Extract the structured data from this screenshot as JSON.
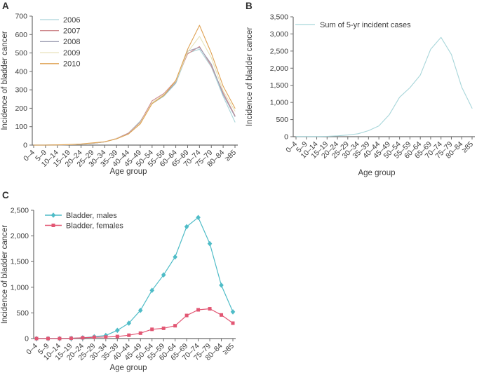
{
  "figure": {
    "background": "#ffffff",
    "text_color": "#3c3c3c",
    "axis_color": "#6b6b6b"
  },
  "chart_data": [
    {
      "type": "line",
      "panel_label": "A",
      "xlabel": "Age group",
      "ylabel": "Incidence of bladder cancer",
      "x_categories": [
        "0–4",
        "5–9",
        "10–14",
        "15–19",
        "20–24",
        "25–29",
        "30–34",
        "35–39",
        "40–44",
        "45–49",
        "50–54",
        "55–59",
        "60–64",
        "65–69",
        "70–74",
        "75–79",
        "80–84",
        "≥85"
      ],
      "ylim": [
        0,
        700
      ],
      "yticks": {
        "values": [
          0,
          100,
          200,
          300,
          400,
          500,
          600,
          700
        ],
        "labels": [
          "0",
          "100",
          "200",
          "300",
          "400",
          "500",
          "600",
          "700"
        ]
      },
      "grid": false,
      "legend_position": "top-left-inside",
      "series": [
        {
          "name": "2006",
          "color": "#aad4d9",
          "marker": "none",
          "values": [
            0,
            0,
            1,
            2,
            5,
            10,
            17,
            35,
            65,
            130,
            225,
            265,
            335,
            500,
            520,
            425,
            265,
            125
          ]
        },
        {
          "name": "2007",
          "color": "#d08c90",
          "marker": "none",
          "values": [
            0,
            0,
            1,
            2,
            5,
            10,
            18,
            36,
            65,
            125,
            240,
            280,
            350,
            495,
            535,
            430,
            285,
            160
          ]
        },
        {
          "name": "2008",
          "color": "#9b9cb1",
          "marker": "none",
          "values": [
            0,
            0,
            1,
            2,
            5,
            10,
            17,
            35,
            62,
            120,
            230,
            270,
            340,
            510,
            530,
            440,
            275,
            155
          ]
        },
        {
          "name": "2009",
          "color": "#e7e2b8",
          "marker": "none",
          "values": [
            0,
            0,
            1,
            2,
            5,
            11,
            18,
            35,
            60,
            120,
            230,
            275,
            345,
            505,
            590,
            475,
            295,
            185
          ]
        },
        {
          "name": "2010",
          "color": "#dfa253",
          "marker": "none",
          "values": [
            0,
            0,
            1,
            3,
            6,
            12,
            18,
            34,
            60,
            115,
            225,
            270,
            350,
            520,
            650,
            500,
            320,
            200
          ]
        }
      ]
    },
    {
      "type": "line",
      "panel_label": "B",
      "xlabel": "Age group",
      "ylabel": "Incidence of bladder cancer",
      "x_categories": [
        "0–4",
        "5–9",
        "10–14",
        "15–19",
        "20–24",
        "25–29",
        "30–34",
        "35–39",
        "40–44",
        "45–49",
        "50–54",
        "55–59",
        "60–64",
        "65–69",
        "70–74",
        "75–79",
        "80–84",
        "≥85"
      ],
      "ylim": [
        0,
        3500
      ],
      "yticks": {
        "values": [
          0,
          500,
          1000,
          1500,
          2000,
          2500,
          3000,
          3500
        ],
        "labels": [
          "0",
          "500",
          "1,000",
          "1,500",
          "2,000",
          "2,500",
          "3,000",
          "3,500"
        ]
      },
      "grid": false,
      "legend_position": "top-left-inside",
      "series": [
        {
          "name": "Sum of 5-yr incident cases",
          "color": "#a8d6da",
          "marker": "none",
          "values": [
            5,
            5,
            5,
            10,
            25,
            50,
            85,
            175,
            315,
            640,
            1150,
            1430,
            1800,
            2550,
            2900,
            2400,
            1450,
            830
          ]
        }
      ]
    },
    {
      "type": "line",
      "panel_label": "C",
      "xlabel": "Age group",
      "ylabel": "Incidence of bladder cancer",
      "x_categories": [
        "0–4",
        "5–9",
        "10–14",
        "15–19",
        "20–24",
        "25–29",
        "30–34",
        "35–39",
        "40–44",
        "45–49",
        "50–54",
        "55–59",
        "60–64",
        "65–69",
        "70–74",
        "75–79",
        "80–84",
        "≥85"
      ],
      "ylim": [
        0,
        2500
      ],
      "yticks": {
        "values": [
          0,
          500,
          1000,
          1500,
          2000,
          2500
        ],
        "labels": [
          "0",
          "500",
          "1,000",
          "1,500",
          "2,000",
          "2,500"
        ]
      },
      "grid": false,
      "legend_position": "top-left-inside",
      "series": [
        {
          "name": "Bladder, males",
          "color": "#4fbcc7",
          "marker": "diamond",
          "values": [
            0,
            0,
            0,
            5,
            15,
            35,
            60,
            160,
            300,
            550,
            940,
            1240,
            1590,
            2180,
            2360,
            1850,
            1040,
            520
          ]
        },
        {
          "name": "Bladder, females",
          "color": "#e25673",
          "marker": "square",
          "values": [
            0,
            0,
            0,
            5,
            15,
            25,
            30,
            40,
            65,
            105,
            180,
            200,
            250,
            450,
            560,
            580,
            460,
            300
          ]
        }
      ]
    }
  ]
}
